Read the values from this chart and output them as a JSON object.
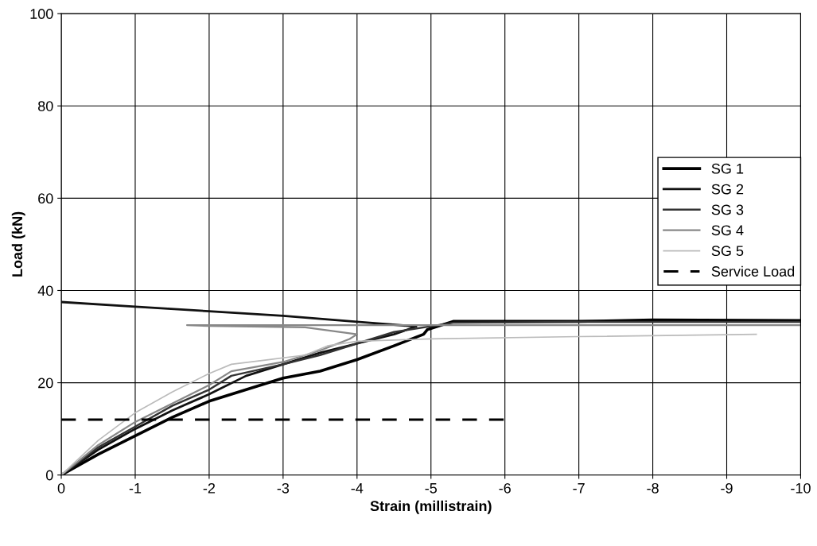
{
  "chart_data": {
    "type": "line",
    "xlabel": "Strain (millistrain)",
    "ylabel": "Load (kN)",
    "xlim": [
      0,
      -10
    ],
    "xticks": [
      0,
      -1,
      -2,
      -3,
      -4,
      -5,
      -6,
      -7,
      -8,
      -9,
      -10
    ],
    "ylim": [
      0,
      100
    ],
    "yticks": [
      0,
      20,
      40,
      60,
      80,
      100
    ],
    "grid": true,
    "legend": "right",
    "marker": "none",
    "series": [
      {
        "name": "SG 1",
        "color": "#000000",
        "x": [
          0,
          -0.5,
          -1,
          -1.5,
          -2,
          -2.5,
          -3,
          -3.5,
          -4,
          -4.5,
          -4.9,
          -4.95,
          -5.3,
          -7,
          -8,
          -10
        ],
        "values": [
          0,
          4.5,
          8.5,
          12.5,
          16,
          18.5,
          21,
          22.5,
          25,
          28,
          30.5,
          31.5,
          33.3,
          33.3,
          33.6,
          33.5
        ]
      },
      {
        "name": "SG 2",
        "color": "#111111",
        "x": [
          0,
          -0.5,
          -1,
          -1.5,
          -2,
          -2.5,
          -3,
          -3.5,
          -4,
          -4.5,
          -4.8,
          -4,
          -3,
          -2,
          -1,
          0
        ],
        "values": [
          0,
          5.5,
          10,
          14,
          17.5,
          21.5,
          24,
          26.5,
          28.5,
          30.5,
          32.2,
          33.2,
          34.5,
          35.5,
          36.5,
          37.5
        ]
      },
      {
        "name": "SG 3",
        "color": "#333333",
        "x": [
          0,
          -0.5,
          -1,
          -1.5,
          -2,
          -2.3,
          -3,
          -3.5,
          -4,
          -4.5,
          -5.3,
          -7,
          -10
        ],
        "values": [
          0,
          6,
          10.5,
          15,
          18.5,
          21.5,
          24,
          26,
          28.5,
          31,
          33,
          33.2,
          33.2
        ]
      },
      {
        "name": "SG 4",
        "color": "#888888",
        "x": [
          0,
          -0.5,
          -1,
          -1.5,
          -2,
          -2.3,
          -3,
          -3.5,
          -3.9,
          -4,
          -3.3,
          -2,
          -1.7,
          -5,
          -10
        ],
        "values": [
          0,
          6.5,
          11.5,
          15.5,
          19.5,
          22.5,
          24.5,
          27,
          29.5,
          30.5,
          32,
          32.3,
          32.5,
          32.5,
          32.5
        ]
      },
      {
        "name": "SG 5",
        "color": "#bbbbbb",
        "x": [
          0,
          -0.5,
          -1,
          -1.5,
          -2,
          -2.3,
          -2.8,
          -3.3,
          -3.6,
          -4,
          -5,
          -7,
          -9.4
        ],
        "values": [
          0,
          7.5,
          13.5,
          18,
          22,
          24,
          25,
          26,
          28,
          29,
          29.5,
          30,
          30.5
        ]
      },
      {
        "name": "Service Load",
        "color": "#000000",
        "line_style": "dashed",
        "x": [
          0,
          -6
        ],
        "values": [
          12,
          12
        ]
      }
    ]
  }
}
